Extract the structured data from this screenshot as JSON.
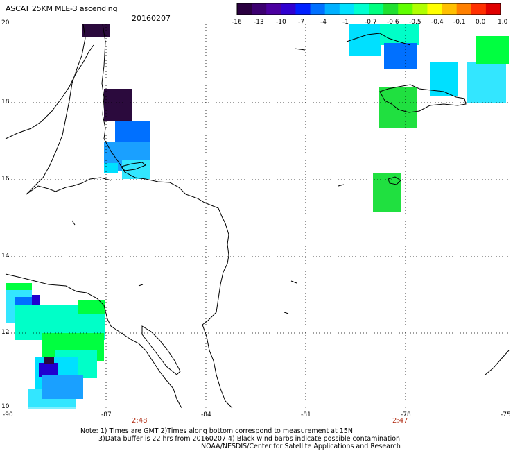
{
  "header": {
    "title": "ASCAT 25KM MLE-3 ascending",
    "date": "20160207"
  },
  "colorbar": {
    "ticks": [
      "-16",
      "-13",
      "-10",
      "-7",
      "-4",
      "-1",
      "-0.7",
      "-0.6",
      "-0.5",
      "-0.4",
      "-0.1",
      "0.0",
      "1.0"
    ],
    "colors": [
      "#2a0040",
      "#3c0070",
      "#4b00a0",
      "#3000d0",
      "#0020ff",
      "#0070ff",
      "#00b0ff",
      "#00e0ff",
      "#00ffd0",
      "#00ff80",
      "#20e030",
      "#60ff00",
      "#b0ff00",
      "#ffff00",
      "#ffc000",
      "#ff8000",
      "#ff3000",
      "#e00000"
    ]
  },
  "map": {
    "y_ticks": [
      "20",
      "18",
      "16",
      "14",
      "12",
      "10"
    ],
    "x_ticks": [
      "-90",
      "-87",
      "-84",
      "-81",
      "-78",
      "-75"
    ],
    "pass_times": [
      "2:48",
      "2:47"
    ],
    "colors": {
      "dark": "#2b0a3d",
      "blue": "#0070ff",
      "blue_mid": "#1aa0ff",
      "deep_blue": "#2000d0",
      "cyan": "#00e0ff",
      "cyan_light": "#33e6ff",
      "aqua": "#00ffc8",
      "green": "#20e040",
      "green_bright": "#00ff40",
      "lime": "#40ff20",
      "land_outline": "#000000",
      "grid": "#000000"
    }
  },
  "notes": {
    "line1": "Note: 1) Times are GMT 2)Times along bottom correspond to measurement at 15N",
    "line2": "3)Data buffer is 22 hrs from 20160207 4) Black wind barbs indicate possible contamination",
    "line3": "NOAA/NESDIS/Center for Satellite Applications and Research"
  }
}
